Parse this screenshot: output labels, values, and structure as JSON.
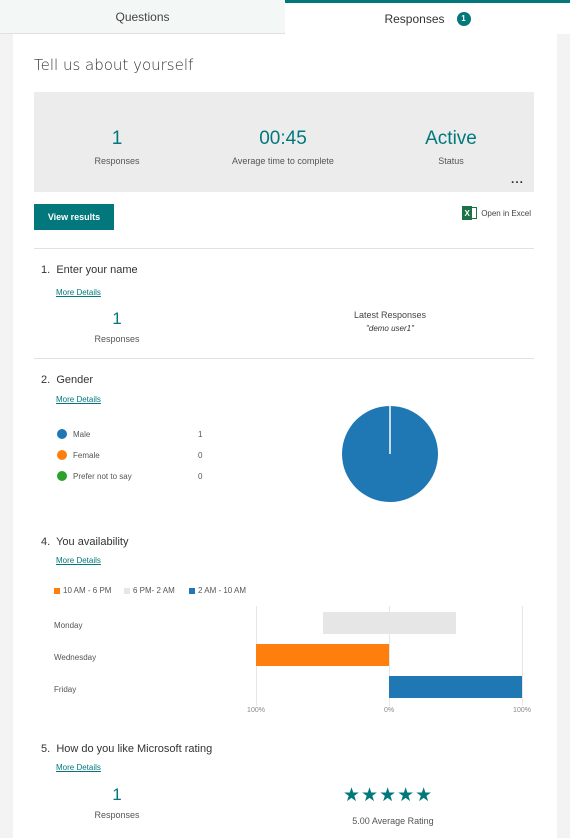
{
  "tabs": {
    "questions": "Questions",
    "responses": "Responses",
    "responses_badge": "1"
  },
  "title": "Tell us about yourself",
  "summary": {
    "responses_value": "1",
    "responses_label": "Responses",
    "time_value": "00:45",
    "time_label": "Average time to complete",
    "status_value": "Active",
    "status_label": "Status",
    "more": "..."
  },
  "actions": {
    "view_results": "View results",
    "open_excel": "Open in Excel",
    "excel_letter": "X"
  },
  "q1": {
    "number": "1.",
    "title": "Enter your name",
    "more_details": "More Details",
    "count": "1",
    "count_label": "Responses",
    "latest_label": "Latest Responses",
    "latest_value": "\"demo user1\""
  },
  "q2": {
    "number": "2.",
    "title": "Gender",
    "more_details": "More Details",
    "options": [
      {
        "label": "Male",
        "count": "1",
        "color": "#1f77b4"
      },
      {
        "label": "Female",
        "count": "0",
        "color": "#ff7f0e"
      },
      {
        "label": "Prefer not to say",
        "count": "0",
        "color": "#2ca02c"
      }
    ]
  },
  "q4": {
    "number": "4.",
    "title": "You availability",
    "more_details": "More Details",
    "legend": [
      {
        "label": "10 AM - 6 PM",
        "color": "#ff7f0e"
      },
      {
        "label": "6 PM- 2 AM",
        "color": "#e6e6e6"
      },
      {
        "label": "2 AM - 10 AM",
        "color": "#1f77b4"
      }
    ],
    "rows": [
      "Monday",
      "Wednesday",
      "Friday"
    ],
    "axis": [
      "100%",
      "0%",
      "100%"
    ]
  },
  "q5": {
    "number": "5.",
    "title": "How do you like Microsoft rating",
    "more_details": "More Details",
    "count": "1",
    "count_label": "Responses",
    "rating_label": "5.00 Average Rating"
  },
  "chart_data": [
    {
      "type": "pie",
      "categories": [
        "Male",
        "Female",
        "Prefer not to say"
      ],
      "values": [
        1,
        0,
        0
      ],
      "colors": [
        "#1f77b4",
        "#ff7f0e",
        "#2ca02c"
      ]
    },
    {
      "type": "bar",
      "orientation": "horizontal",
      "categories": [
        "Monday",
        "Wednesday",
        "Friday"
      ],
      "series": [
        {
          "name": "6 PM- 2 AM",
          "color": "#e6e6e6",
          "range": [
            -50,
            50
          ],
          "category": "Monday"
        },
        {
          "name": "10 AM - 6 PM",
          "color": "#ff7f0e",
          "range": [
            -100,
            0
          ],
          "category": "Wednesday"
        },
        {
          "name": "2 AM - 10 AM",
          "color": "#1f77b4",
          "range": [
            0,
            100
          ],
          "category": "Friday"
        }
      ],
      "xlim": [
        -100,
        100
      ]
    }
  ]
}
